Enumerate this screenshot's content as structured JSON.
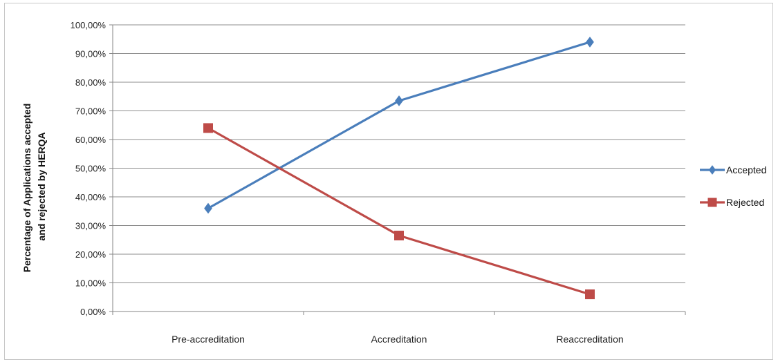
{
  "chart_data": {
    "type": "line",
    "categories": [
      "Pre-accreditation",
      "Accreditation",
      "Reaccreditation"
    ],
    "series": [
      {
        "name": "Accepted",
        "values": [
          36.0,
          73.5,
          94.0
        ],
        "color": "#4a7ebb",
        "marker": "diamond"
      },
      {
        "name": "Rejected",
        "values": [
          64.0,
          26.5,
          6.0
        ],
        "color": "#be4b48",
        "marker": "square"
      }
    ],
    "y_ticks": [
      "0,00%",
      "10,00%",
      "20,00%",
      "30,00%",
      "40,00%",
      "50,00%",
      "60,00%",
      "70,00%",
      "80,00%",
      "90,00%",
      "100,00%"
    ],
    "ylabel_lines": [
      "Percentage of Applications accepted",
      "and rejected by HERQA"
    ],
    "ylim": [
      0,
      100
    ],
    "grid": true,
    "legend": "right"
  }
}
